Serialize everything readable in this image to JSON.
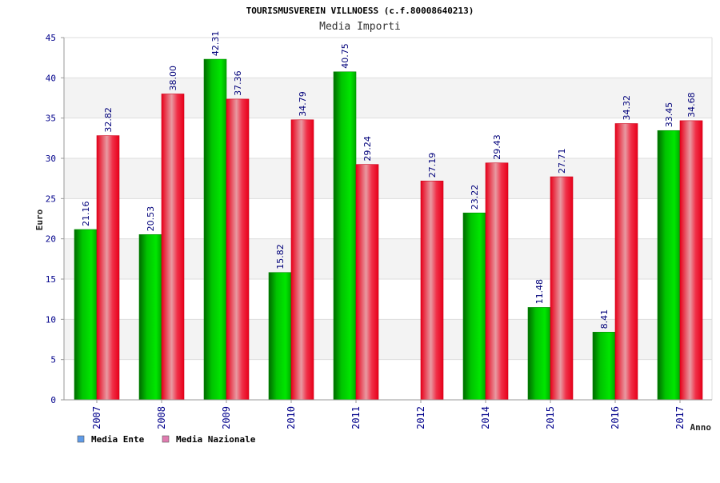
{
  "chart_data": {
    "type": "bar",
    "title": "TOURISMUSVEREIN VILLNOESS (c.f.80008640213)",
    "subtitle": "Media Importi",
    "xlabel": "Anno",
    "ylabel": "Euro",
    "ylim": [
      0,
      45
    ],
    "yticks": [
      0,
      5,
      10,
      15,
      20,
      25,
      30,
      35,
      40,
      45
    ],
    "categories": [
      "2007",
      "2008",
      "2009",
      "2010",
      "2011",
      "2012",
      "2014",
      "2015",
      "2016",
      "2017"
    ],
    "series": [
      {
        "name": "Media Ente",
        "color": "#00bb00",
        "values": [
          21.16,
          20.53,
          42.31,
          15.82,
          40.75,
          null,
          23.22,
          11.48,
          8.41,
          33.45
        ],
        "labels": [
          "21.16",
          "20.53",
          "42.31",
          "15.82",
          "40.75",
          "",
          "23.22",
          "11.48",
          "8.41",
          "33.45"
        ]
      },
      {
        "name": "Media Nazionale",
        "color": "#ee1133",
        "values": [
          32.82,
          38.0,
          37.36,
          34.79,
          29.24,
          27.19,
          29.43,
          27.71,
          34.32,
          34.68
        ],
        "labels": [
          "32.82",
          "38.00",
          "37.36",
          "34.79",
          "29.24",
          "27.19",
          "29.43",
          "27.71",
          "34.32",
          "34.68"
        ]
      }
    ],
    "legend": {
      "placement": "bottom-left",
      "entries": [
        {
          "label": "Media Ente",
          "swatch_color": "#5f9be8"
        },
        {
          "label": "Media Nazionale",
          "swatch_color": "#e07bb0"
        }
      ]
    },
    "grid": "horizontal-banded"
  }
}
